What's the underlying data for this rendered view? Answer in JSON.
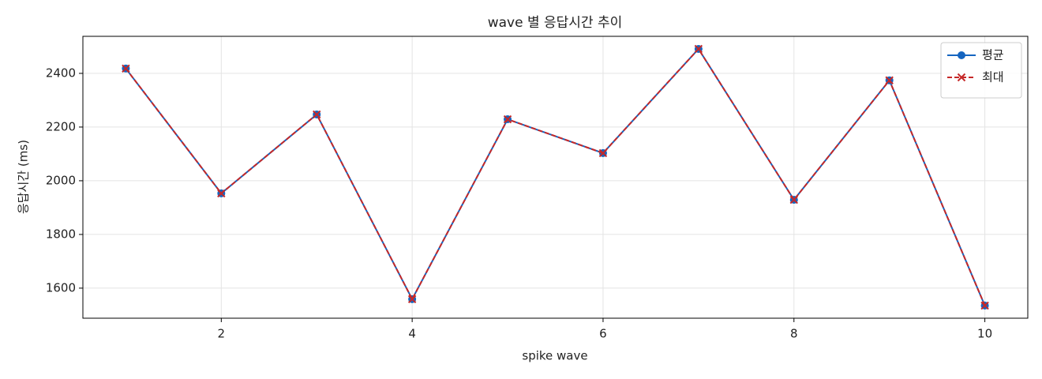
{
  "chart_data": {
    "type": "line",
    "title": "wave 별 응답시간 추이",
    "xlabel": "spike wave",
    "ylabel": "응답시간 (ms)",
    "x": [
      1,
      2,
      3,
      4,
      5,
      6,
      7,
      8,
      9,
      10
    ],
    "series": [
      {
        "name": "평균",
        "color": "#1565c0",
        "marker": "o",
        "linestyle": "solid",
        "values": [
          2418,
          1953,
          2247,
          1559,
          2229,
          2103,
          2491,
          1929,
          2374,
          1535
        ]
      },
      {
        "name": "최대",
        "color": "#c62828",
        "marker": "x",
        "linestyle": "dashed",
        "values": [
          2418,
          1953,
          2247,
          1559,
          2229,
          2103,
          2491,
          1929,
          2374,
          1535
        ]
      }
    ],
    "xlim": [
      0.55,
      10.45
    ],
    "xticks": [
      2,
      4,
      6,
      8,
      10
    ],
    "ylim": [
      1488,
      2538
    ],
    "yticks": [
      1600,
      1800,
      2000,
      2200,
      2400
    ],
    "grid": true,
    "legend": "upper right"
  }
}
